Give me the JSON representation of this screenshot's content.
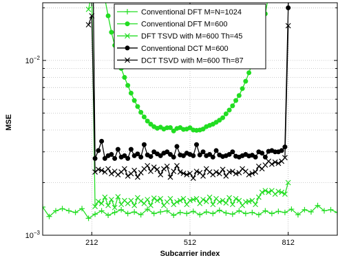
{
  "chart_data": {
    "type": "line",
    "xlabel": "Subcarrier index",
    "ylabel": "MSE",
    "xlim": [
      62,
      962
    ],
    "ylim_exponent": [
      -3,
      -1.67
    ],
    "y_scale": "log",
    "grid": "dotted-both",
    "legend_position": "top-center",
    "x_ticks": [
      {
        "value": 212,
        "label": "212"
      },
      {
        "value": 512,
        "label": "512"
      },
      {
        "value": 812,
        "label": "812"
      }
    ],
    "y_ticks": [
      {
        "value_exp": -3,
        "base": "10",
        "exp": "−3"
      },
      {
        "value_exp": -2,
        "base": "10",
        "exp": "−2"
      }
    ],
    "series": [
      {
        "name": "Conventional DFT M=N=1024",
        "color": "#22dd22",
        "marker": "plus",
        "x": [
          62,
          82,
          102,
          122,
          142,
          162,
          182,
          202,
          222,
          242,
          262,
          282,
          302,
          322,
          342,
          362,
          382,
          402,
          422,
          442,
          462,
          482,
          502,
          522,
          542,
          562,
          582,
          602,
          622,
          642,
          662,
          682,
          702,
          722,
          742,
          762,
          782,
          802,
          822,
          842,
          862,
          882,
          902,
          922,
          942,
          962
        ],
        "y": [
          0.00145,
          0.00128,
          0.00138,
          0.00142,
          0.00138,
          0.00135,
          0.00142,
          0.00125,
          0.00132,
          0.00138,
          0.0013,
          0.00135,
          0.0014,
          0.00133,
          0.00136,
          0.00131,
          0.00141,
          0.00133,
          0.00136,
          0.00138,
          0.0013,
          0.00135,
          0.00133,
          0.00137,
          0.00131,
          0.00136,
          0.00133,
          0.00139,
          0.00134,
          0.00132,
          0.00138,
          0.00133,
          0.00135,
          0.00131,
          0.00138,
          0.00133,
          0.00137,
          0.00135,
          0.00141,
          0.00131,
          0.0014,
          0.00136,
          0.00148,
          0.00138,
          0.0014,
          0.00135
        ]
      },
      {
        "name": "Conventional DFT M=600",
        "color": "#22dd22",
        "marker": "dot",
        "x": [
          212,
          222,
          232,
          242,
          252,
          262,
          272,
          282,
          292,
          302,
          312,
          322,
          332,
          342,
          352,
          362,
          372,
          382,
          392,
          402,
          412,
          422,
          432,
          442,
          452,
          462,
          472,
          482,
          492,
          502,
          512,
          522,
          532,
          542,
          552,
          562,
          572,
          582,
          592,
          602,
          612,
          622,
          632,
          642,
          652,
          662,
          672,
          682,
          692,
          702,
          712,
          722,
          732,
          742,
          752,
          762,
          772,
          782,
          792,
          802,
          812
        ],
        "y": [
          0.2,
          0.12,
          0.043,
          0.0295,
          0.0225,
          0.018,
          0.0145,
          0.0122,
          0.0104,
          0.009,
          0.008,
          0.0072,
          0.0065,
          0.0059,
          0.00545,
          0.00505,
          0.00475,
          0.0045,
          0.00432,
          0.00418,
          0.00409,
          0.00415,
          0.00405,
          0.00412,
          0.00413,
          0.00395,
          0.00408,
          0.00413,
          0.00403,
          0.00405,
          0.00412,
          0.004,
          0.00398,
          0.004,
          0.00405,
          0.00418,
          0.00425,
          0.00432,
          0.00443,
          0.00455,
          0.0047,
          0.00495,
          0.0052,
          0.0055,
          0.0059,
          0.0063,
          0.0069,
          0.0076,
          0.0085,
          0.0096,
          0.011,
          0.0128,
          0.0152,
          0.0185,
          0.0235,
          0.031,
          0.045,
          0.075,
          0.15,
          0.25,
          0.4
        ]
      },
      {
        "name": "DFT TSVD with M=600 Th=45",
        "color": "#22dd22",
        "marker": "x",
        "x": [
          202,
          212,
          222,
          232,
          242,
          252,
          262,
          272,
          282,
          292,
          302,
          312,
          322,
          332,
          342,
          352,
          362,
          372,
          382,
          392,
          402,
          412,
          422,
          432,
          442,
          452,
          462,
          472,
          482,
          492,
          502,
          512,
          522,
          532,
          542,
          552,
          562,
          572,
          582,
          592,
          602,
          612,
          622,
          632,
          642,
          652,
          662,
          672,
          682,
          692,
          702,
          712,
          722,
          732,
          742,
          752,
          762,
          772,
          782,
          792,
          802,
          812
        ],
        "y": [
          0.0196,
          0.024,
          0.00146,
          0.00156,
          0.00152,
          0.00165,
          0.00148,
          0.0016,
          0.00144,
          0.00166,
          0.0015,
          0.00158,
          0.00152,
          0.00158,
          0.00148,
          0.00164,
          0.00157,
          0.00152,
          0.0016,
          0.00148,
          0.00163,
          0.00158,
          0.00162,
          0.00148,
          0.00155,
          0.00162,
          0.0015,
          0.00155,
          0.00158,
          0.00162,
          0.0015,
          0.00158,
          0.0016,
          0.00162,
          0.00152,
          0.0016,
          0.00156,
          0.00165,
          0.0015,
          0.00162,
          0.00155,
          0.00158,
          0.00153,
          0.00164,
          0.0015,
          0.00162,
          0.00158,
          0.00148,
          0.00155,
          0.00156,
          0.00158,
          0.0015,
          0.00165,
          0.00176,
          0.0018,
          0.00176,
          0.0018,
          0.00172,
          0.00178,
          0.00176,
          0.00172,
          0.002
        ]
      },
      {
        "name": "Conventional DCT M=600",
        "color": "#000000",
        "marker": "dot",
        "x": [
          202,
          212,
          222,
          232,
          242,
          252,
          262,
          272,
          282,
          292,
          302,
          312,
          322,
          332,
          342,
          352,
          362,
          372,
          382,
          392,
          402,
          412,
          422,
          432,
          442,
          452,
          462,
          472,
          482,
          492,
          502,
          512,
          522,
          532,
          542,
          552,
          562,
          572,
          582,
          592,
          602,
          612,
          622,
          632,
          642,
          652,
          662,
          672,
          682,
          692,
          702,
          712,
          722,
          732,
          742,
          752,
          762,
          772,
          782,
          792,
          802,
          812,
          822
        ],
        "y": [
          0.2,
          0.15,
          0.00275,
          0.00305,
          0.00345,
          0.00275,
          0.00285,
          0.0029,
          0.00275,
          0.0031,
          0.0028,
          0.00285,
          0.00275,
          0.0031,
          0.00285,
          0.00292,
          0.0028,
          0.0033,
          0.00288,
          0.00282,
          0.003,
          0.00292,
          0.00285,
          0.00295,
          0.003,
          0.0029,
          0.0028,
          0.00322,
          0.00288,
          0.00285,
          0.00295,
          0.0029,
          0.00285,
          0.0033,
          0.00288,
          0.003,
          0.00285,
          0.0029,
          0.0028,
          0.00305,
          0.00288,
          0.00282,
          0.00285,
          0.0029,
          0.003,
          0.00283,
          0.0028,
          0.00285,
          0.0029,
          0.00284,
          0.00287,
          0.0028,
          0.003,
          0.00295,
          0.0028,
          0.00302,
          0.00305,
          0.003,
          0.003,
          0.00305,
          0.0032,
          0.02,
          0.2
        ]
      },
      {
        "name": "DCT TSVD with M=600 Th=87",
        "color": "#000000",
        "marker": "x",
        "x": [
          202,
          212,
          222,
          232,
          242,
          252,
          262,
          272,
          282,
          292,
          302,
          312,
          322,
          332,
          342,
          352,
          362,
          372,
          382,
          392,
          402,
          412,
          422,
          432,
          442,
          452,
          462,
          472,
          482,
          492,
          502,
          512,
          522,
          532,
          542,
          552,
          562,
          572,
          582,
          592,
          602,
          612,
          622,
          632,
          642,
          652,
          662,
          672,
          682,
          692,
          702,
          712,
          722,
          732,
          742,
          752,
          762,
          772,
          782,
          792,
          802,
          812
        ],
        "y": [
          0.016,
          0.018,
          0.0023,
          0.00238,
          0.00235,
          0.0023,
          0.0024,
          0.00225,
          0.00232,
          0.00222,
          0.0023,
          0.0024,
          0.00218,
          0.00225,
          0.00235,
          0.00215,
          0.00228,
          0.0024,
          0.0025,
          0.00232,
          0.00245,
          0.00238,
          0.00222,
          0.0024,
          0.00248,
          0.00215,
          0.00232,
          0.0025,
          0.0023,
          0.00226,
          0.00222,
          0.00226,
          0.00212,
          0.00232,
          0.00228,
          0.00218,
          0.0024,
          0.0023,
          0.00222,
          0.0023,
          0.00225,
          0.00238,
          0.00218,
          0.0023,
          0.00232,
          0.00225,
          0.00228,
          0.0024,
          0.00232,
          0.00222,
          0.00226,
          0.0023,
          0.00248,
          0.0024,
          0.00252,
          0.00265,
          0.00255,
          0.00262,
          0.00258,
          0.00265,
          0.00278,
          0.0158
        ]
      }
    ]
  }
}
